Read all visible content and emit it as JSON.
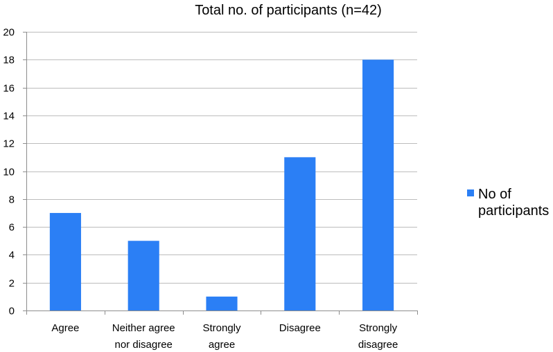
{
  "chart_data": {
    "type": "bar",
    "title": "Total no. of participants (n=42)",
    "categories": [
      [
        "Agree"
      ],
      [
        "Neither agree",
        "nor disagree"
      ],
      [
        "Strongly",
        "agree"
      ],
      [
        "Disagree"
      ],
      [
        "Strongly",
        "disagree"
      ]
    ],
    "series": [
      {
        "name": [
          "No of",
          "participants"
        ],
        "values": [
          7,
          5,
          1,
          11,
          18
        ],
        "color": "#2b7ff5"
      }
    ],
    "ylim": [
      0,
      20
    ],
    "yticks": [
      0,
      2,
      4,
      6,
      8,
      10,
      12,
      14,
      16,
      18,
      20
    ],
    "grid": true,
    "legend": "right",
    "colors": {
      "gridline": "#bcbcbc",
      "axis": "#8c8c8c"
    }
  }
}
